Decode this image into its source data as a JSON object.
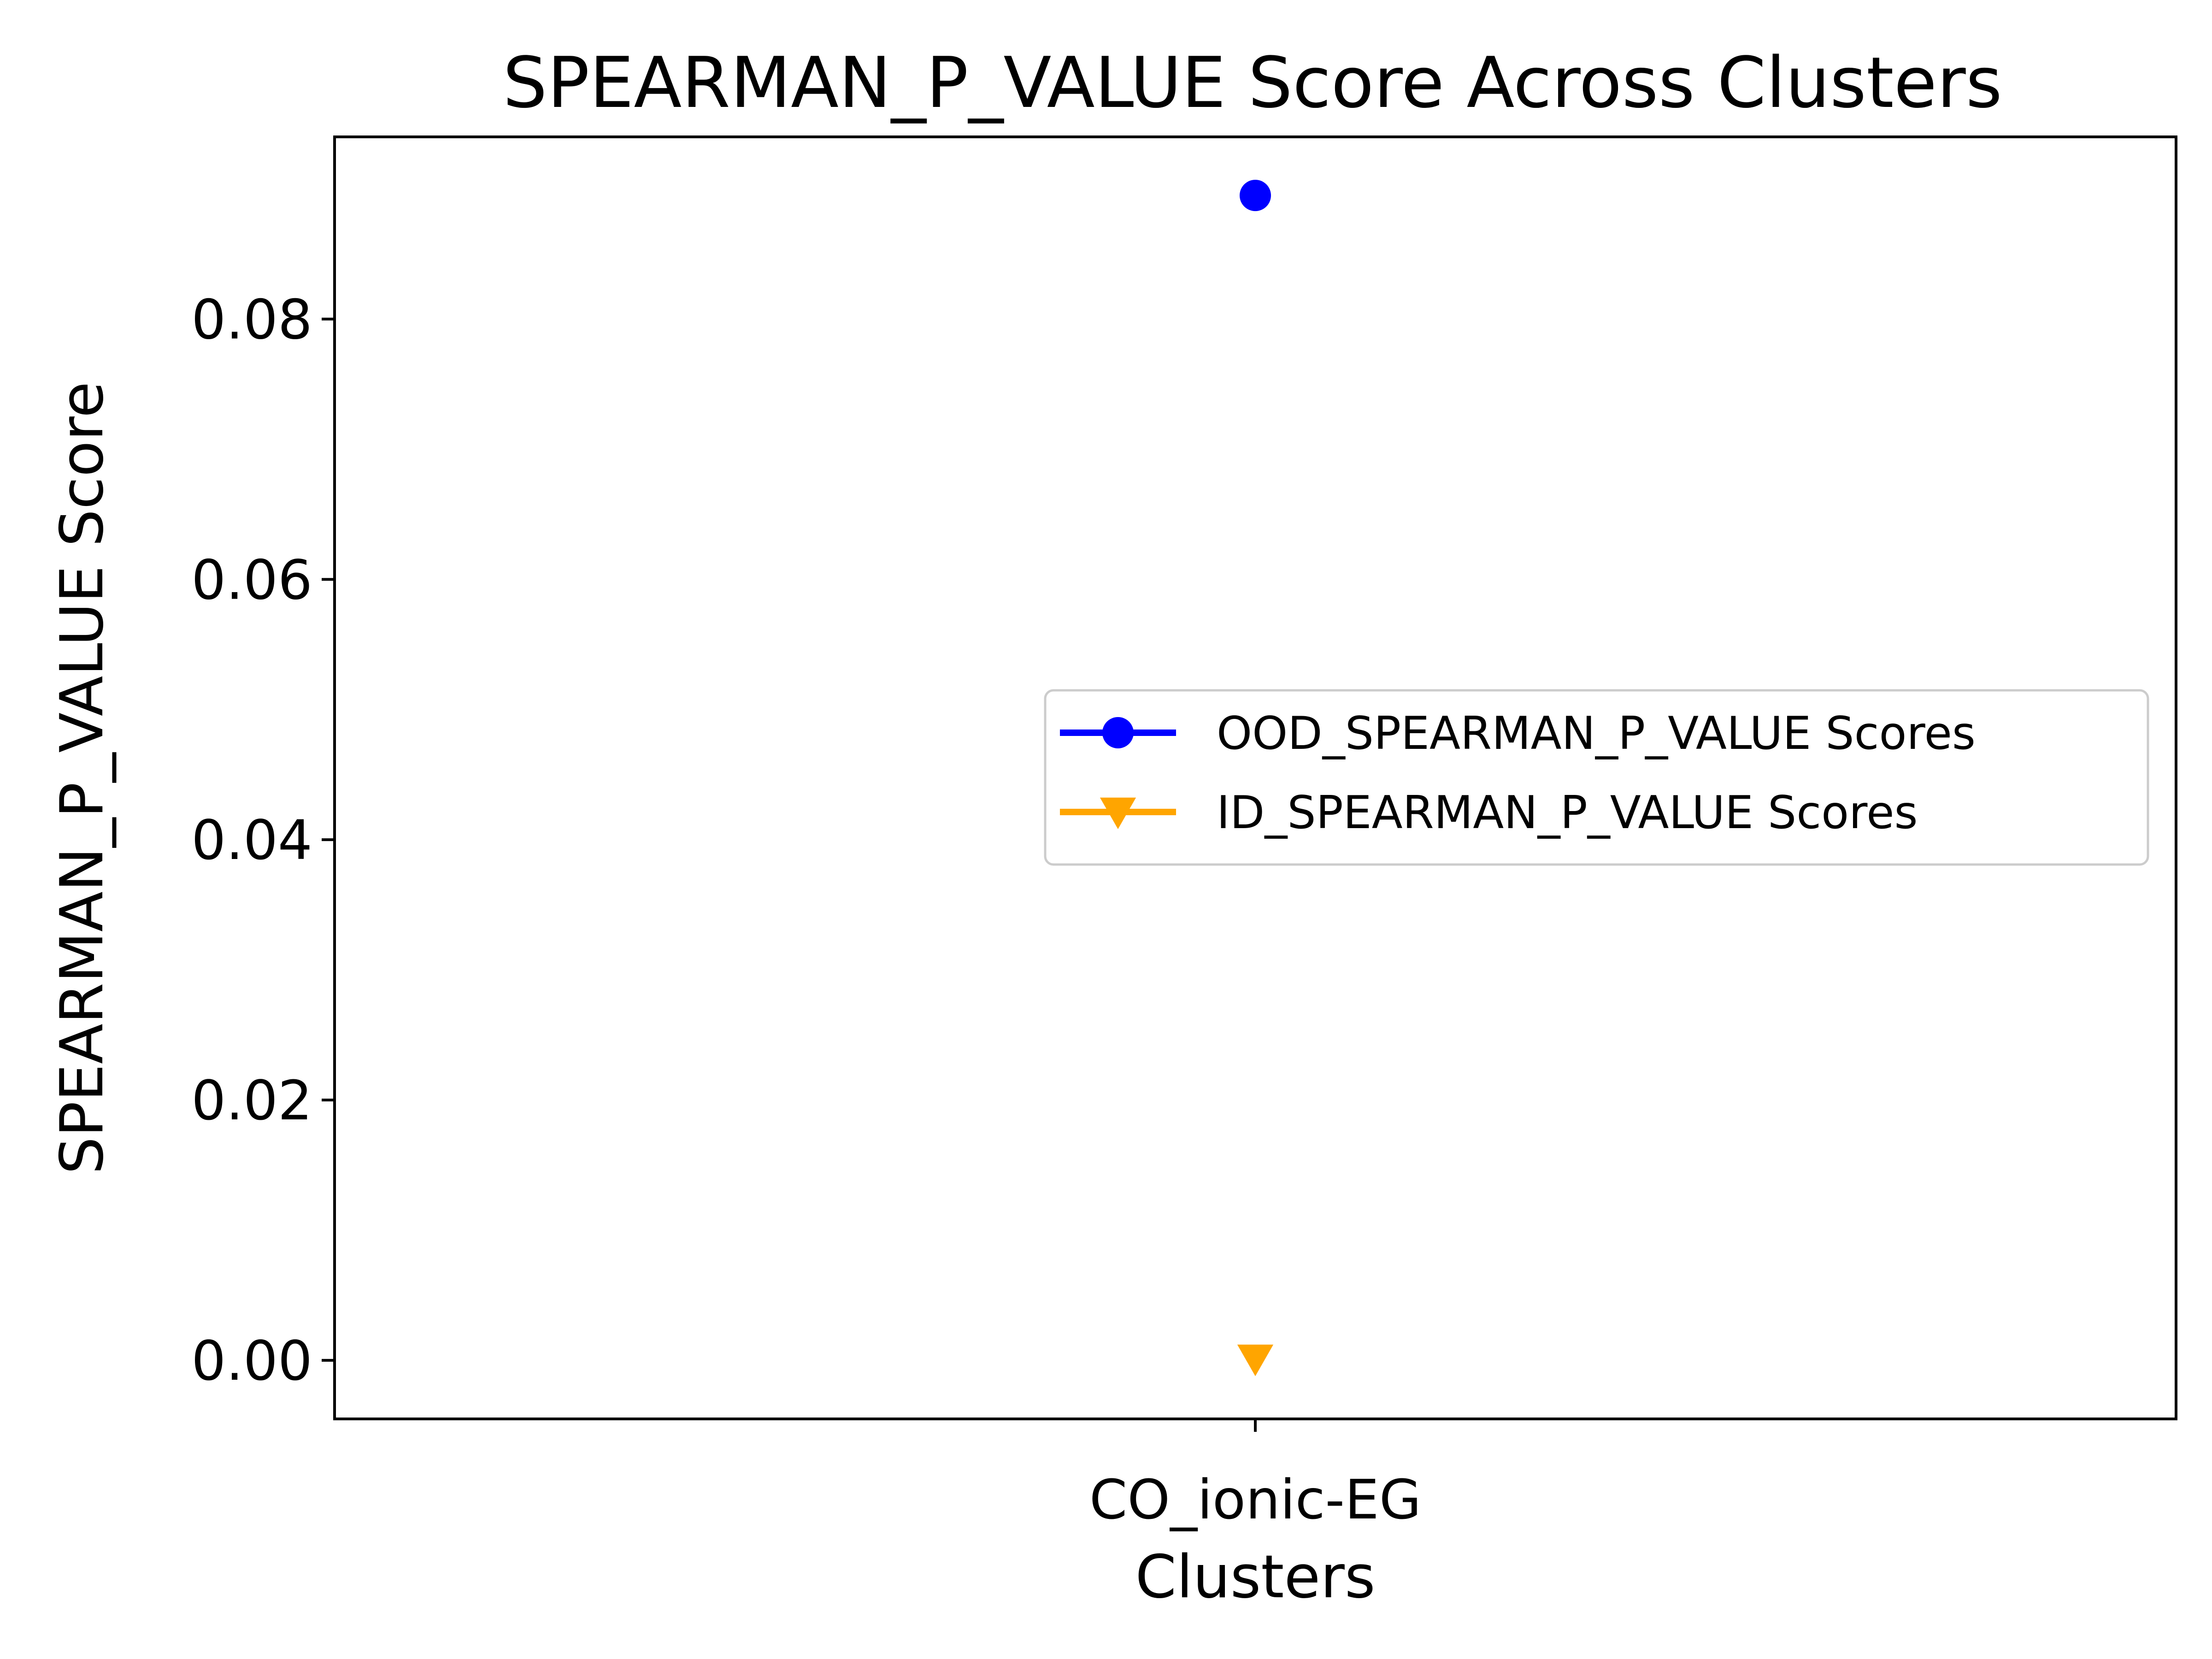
{
  "chart_data": {
    "type": "scatter",
    "title": "SPEARMAN_P_VALUE Score Across Clusters",
    "xlabel": "Clusters",
    "ylabel": "SPEARMAN_P_VALUE Score",
    "categories": [
      "CO_ionic-EG"
    ],
    "ylim": [
      -0.0045,
      0.094
    ],
    "yticks": [
      0.0,
      0.02,
      0.04,
      0.06,
      0.08
    ],
    "ytick_labels": [
      "0.00",
      "0.02",
      "0.04",
      "0.06",
      "0.08"
    ],
    "grid": false,
    "legend_position": "center-right",
    "series": [
      {
        "name": "OOD_SPEARMAN_P_VALUE Scores",
        "values": [
          0.0895
        ],
        "color": "#0000ff",
        "marker": "circle"
      },
      {
        "name": "ID_SPEARMAN_P_VALUE Scores",
        "values": [
          0.0001
        ],
        "color": "#ffa500",
        "marker": "triangle-down"
      }
    ]
  }
}
